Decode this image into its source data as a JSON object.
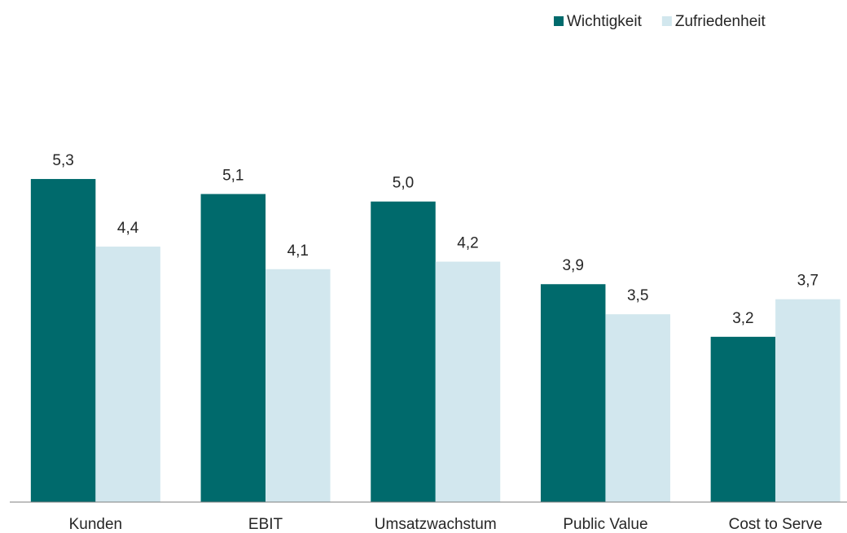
{
  "chart_data": {
    "type": "bar",
    "categories": [
      "Kunden",
      "EBIT",
      "Umsatzwachstum",
      "Public Value",
      "Cost to Serve"
    ],
    "series": [
      {
        "name": "Wichtigkeit",
        "color": "#006a6c",
        "values": [
          5.3,
          5.1,
          5.0,
          3.9,
          3.2
        ],
        "value_labels": [
          "5,3",
          "5,1",
          "5,0",
          "3,9",
          "3,2"
        ]
      },
      {
        "name": "Zufriedenheit",
        "color": "#d2e7ee",
        "values": [
          4.4,
          4.1,
          4.2,
          3.5,
          3.7
        ],
        "value_labels": [
          "4,4",
          "4,1",
          "4,2",
          "3,5",
          "3,7"
        ]
      }
    ],
    "ylim": [
      1,
      7
    ],
    "grid": false,
    "legend": "top-right"
  }
}
